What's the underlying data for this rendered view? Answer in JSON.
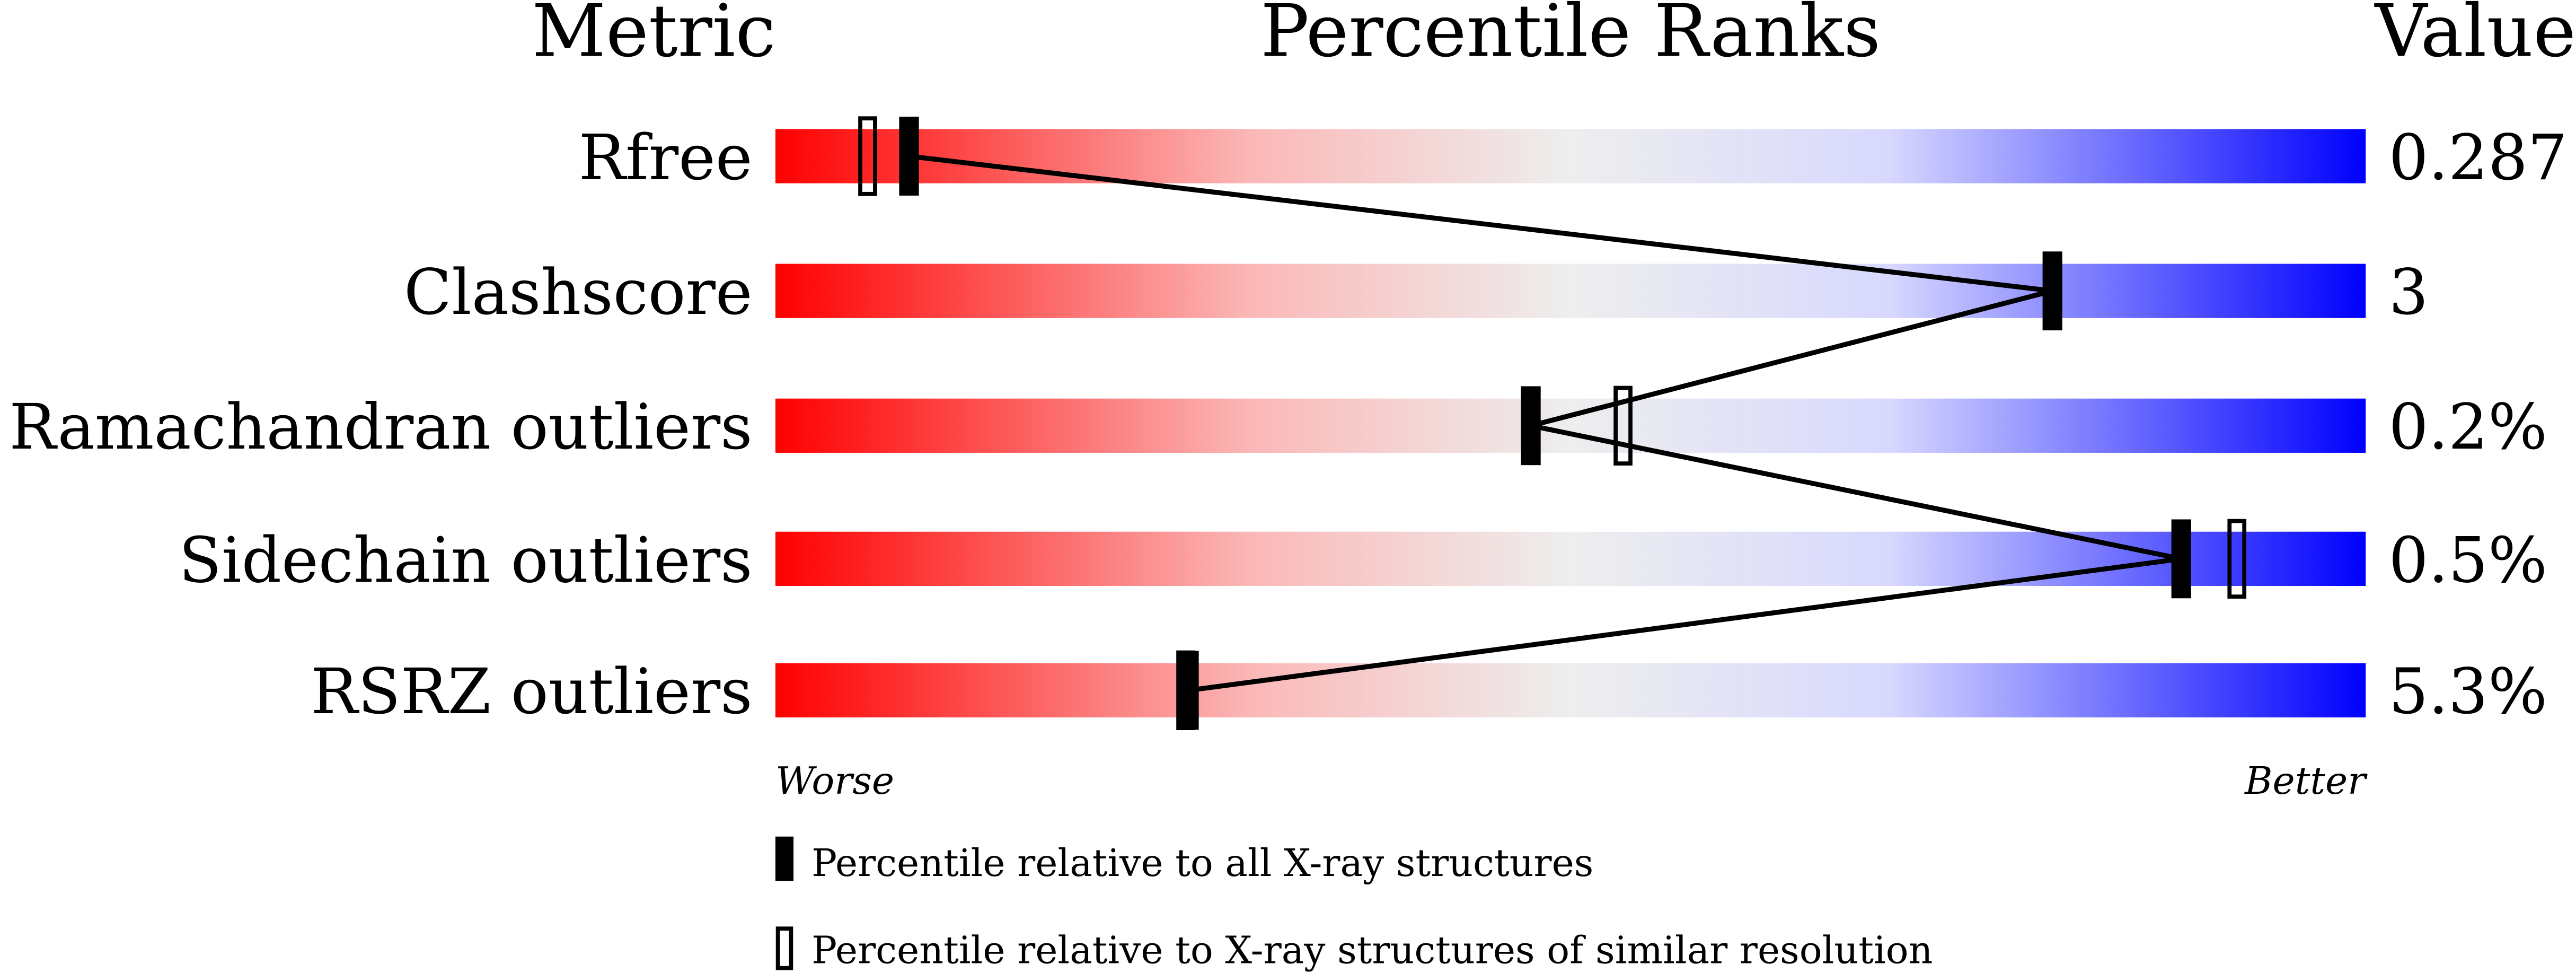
{
  "chart_data": {
    "type": "percentile-ranks",
    "headers": {
      "metric": "Metric",
      "ranks": "Percentile Ranks",
      "value": "Value"
    },
    "scale_labels": {
      "low": "Worse",
      "high": "Better"
    },
    "xlim": [
      0,
      100
    ],
    "gradient_colors": [
      "#ff0000",
      "#eeeeee",
      "#0000ff"
    ],
    "rows": [
      {
        "metric": "Rfree",
        "value": "0.287",
        "percentile_all": 8.4,
        "percentile_similar": 5.8
      },
      {
        "metric": "Clashscore",
        "value": "3",
        "percentile_all": 80.3,
        "percentile_similar": null
      },
      {
        "metric": "Ramachandran outliers",
        "value": "0.2%",
        "percentile_all": 47.5,
        "percentile_similar": 53.3
      },
      {
        "metric": "Sidechain outliers",
        "value": "0.5%",
        "percentile_all": 88.4,
        "percentile_similar": 91.9
      },
      {
        "metric": "RSRZ outliers",
        "value": "5.3%",
        "percentile_all": 26.0,
        "percentile_similar": 25.8
      }
    ],
    "legend": [
      {
        "marker": "filled",
        "label": "Percentile relative to all X-ray structures"
      },
      {
        "marker": "open",
        "label": "Percentile relative to X-ray structures of similar resolution"
      }
    ]
  }
}
